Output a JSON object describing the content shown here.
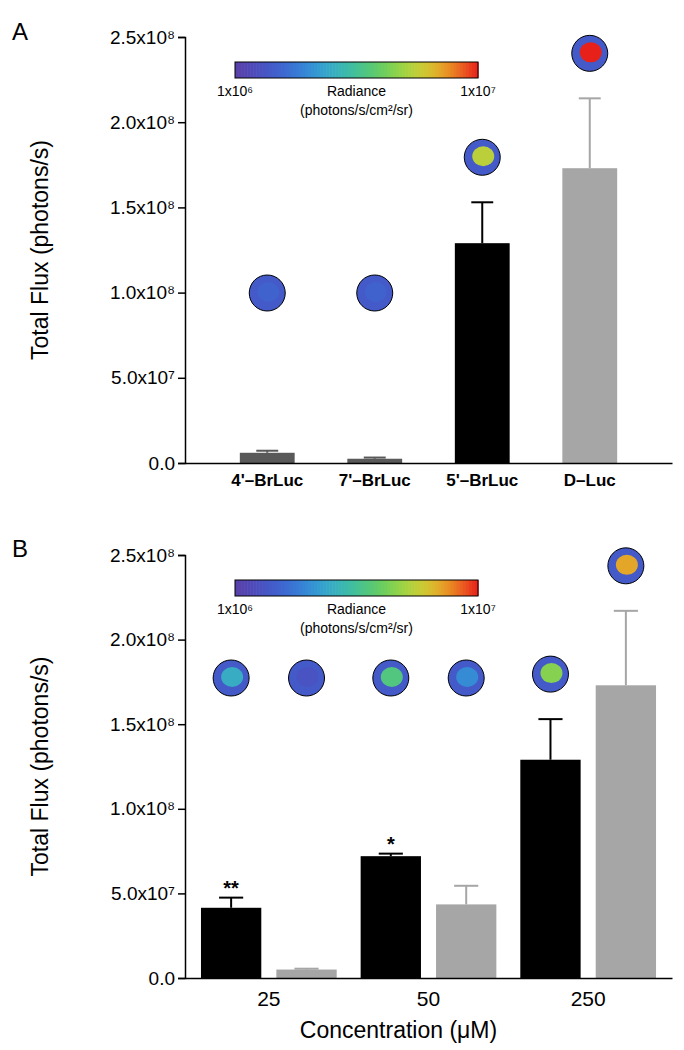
{
  "chart_data": [
    {
      "type": "bar",
      "title": "A",
      "categories": [
        "4'–BrLuc",
        "7'–BrLuc",
        "5'–BrLuc",
        "D–Luc"
      ],
      "values": [
        6000000,
        2500000,
        129000000,
        173000000
      ],
      "errors": [
        1200000,
        700000,
        24000000,
        41000000
      ],
      "colors": [
        "#595959",
        "#595959",
        "#000000",
        "#a6a6a6"
      ],
      "image_radiance": [
        1500000,
        1500000,
        5500000,
        10000000
      ],
      "y_label": "Total Flux (photons/s)",
      "ylim": [
        0,
        250000000
      ],
      "yticks": [
        {
          "value": 0,
          "label": "0.0"
        },
        {
          "value": 50000000,
          "label": "5.0x10⁷"
        },
        {
          "value": 100000000,
          "label": "1.0x10⁸"
        },
        {
          "value": 150000000,
          "label": "1.5x10⁸"
        },
        {
          "value": 200000000,
          "label": "2.0x10⁸"
        },
        {
          "value": 250000000,
          "label": "2.5x10⁸"
        }
      ],
      "colorbar": {
        "range": [
          1000000,
          10000000
        ],
        "ticks": [
          {
            "value": 1000000,
            "label": "1x10⁶"
          },
          {
            "value": 10000000,
            "label": "1x10⁷"
          }
        ],
        "label": [
          "Radiance",
          "(photons/s/cm²/sr)"
        ]
      }
    },
    {
      "type": "bar",
      "title": "B",
      "categories": [
        "25",
        "50",
        "250"
      ],
      "series": [
        {
          "color": "#000000",
          "values": [
            41500000,
            72000000,
            129000000
          ],
          "errors": [
            6000000,
            1500000,
            24000000
          ],
          "annotations": [
            "**",
            "*",
            null
          ],
          "image_radiance": [
            2500000,
            3500000,
            4500000
          ]
        },
        {
          "color": "#a6a6a6",
          "values": [
            5000000,
            43500000,
            173000000
          ],
          "errors": [
            500000,
            11000000,
            44000000
          ],
          "annotations": [
            null,
            null,
            null
          ],
          "image_radiance": [
            1300000,
            2000000,
            7000000
          ]
        }
      ],
      "x_label": "Concentration (μM)",
      "y_label": "Total Flux (photons/s)",
      "ylim": [
        0,
        250000000
      ],
      "yticks": [
        {
          "value": 0,
          "label": "0.0"
        },
        {
          "value": 50000000,
          "label": "5.0x10⁷"
        },
        {
          "value": 100000000,
          "label": "1.0x10⁸"
        },
        {
          "value": 150000000,
          "label": "1.5x10⁸"
        },
        {
          "value": 200000000,
          "label": "2.0x10⁸"
        },
        {
          "value": 250000000,
          "label": "2.5x10⁸"
        }
      ],
      "colorbar": {
        "range": [
          1000000,
          10000000
        ],
        "ticks": [
          {
            "value": 1000000,
            "label": "1x10⁶"
          },
          {
            "value": 10000000,
            "label": "1x10⁷"
          }
        ],
        "label": [
          "Radiance",
          "(photons/s/cm²/sr)"
        ]
      }
    }
  ]
}
